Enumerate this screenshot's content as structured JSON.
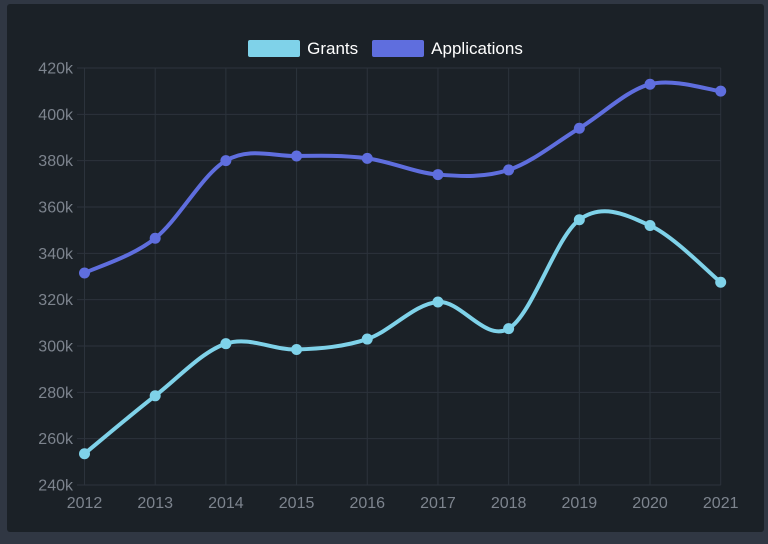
{
  "window": {
    "background": "#303743"
  },
  "panel": {
    "background": "#1B2127"
  },
  "legend": {
    "items": [
      {
        "label": "Grants",
        "color": "#7FD2E9"
      },
      {
        "label": "Applications",
        "color": "#5F6EDE"
      }
    ]
  },
  "chart_data": {
    "type": "line",
    "title": "",
    "xlabel": "",
    "ylabel": "",
    "x": [
      2012,
      2013,
      2014,
      2015,
      2016,
      2017,
      2018,
      2019,
      2020,
      2021
    ],
    "xtick_labels": [
      "2012",
      "2013",
      "2014",
      "2015",
      "2016",
      "2017",
      "2018",
      "2019",
      "2020",
      "2021"
    ],
    "unit": "thousands",
    "ylim": [
      240,
      420
    ],
    "ytick_step": 20,
    "ytick_labels": [
      "240k",
      "260k",
      "280k",
      "300k",
      "320k",
      "340k",
      "360k",
      "380k",
      "400k",
      "420k"
    ],
    "grid": true,
    "smooth": true,
    "legend_position": "top-center",
    "series": [
      {
        "name": "Grants",
        "color": "#7FD2E9",
        "values": [
          253.5,
          278.5,
          301,
          298.5,
          303,
          319,
          307.5,
          354.5,
          352,
          327.5
        ]
      },
      {
        "name": "Applications",
        "color": "#5F6EDE",
        "values": [
          331.5,
          346.5,
          380,
          382,
          381,
          374,
          376,
          394,
          413,
          410
        ]
      }
    ],
    "colors": {
      "grid": "#2C333C",
      "tick_text": "#7D848E",
      "legend_text": "#FFFFFF"
    }
  }
}
